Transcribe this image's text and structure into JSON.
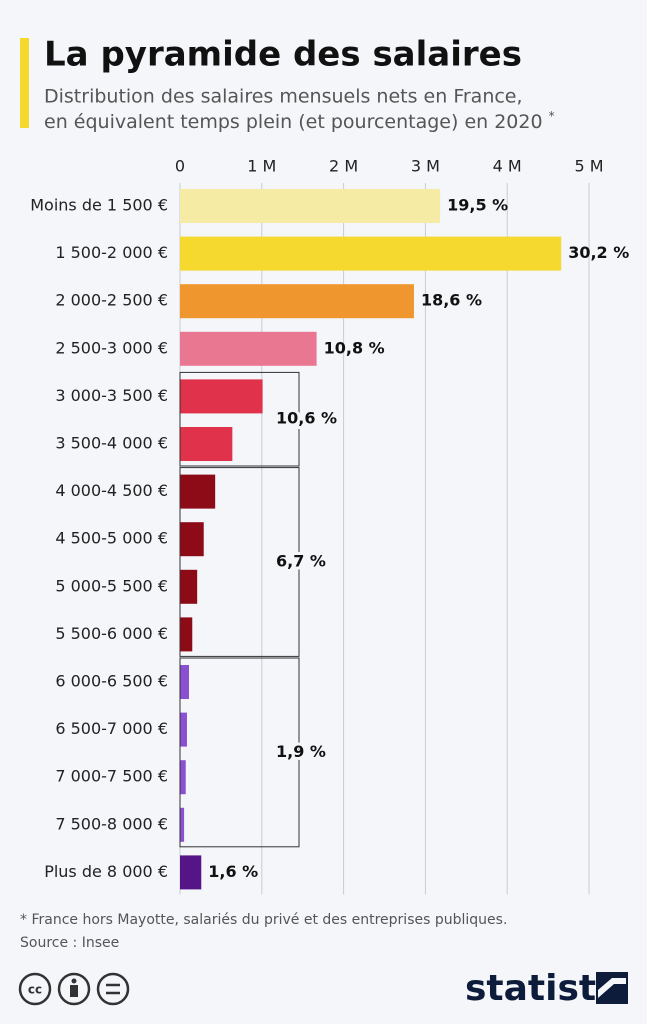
{
  "chart_data": {
    "type": "bar",
    "orientation": "horizontal",
    "title": "La pyramide des salaires",
    "subtitle": [
      "Distribution des salaires mensuels nets en France,",
      "en équivalent temps plein (et pourcentage) en 2020"
    ],
    "subtitle_mark": "*",
    "categories": [
      "Moins de 1 500 €",
      "1 500-2 000 €",
      "2 000-2 500 €",
      "2 500-3 000 €",
      "3 000-3 500 €",
      "3 500-4 000 €",
      "4 000-4 500 €",
      "4 500-5 000 €",
      "5 000-5 500 €",
      "5 500-6 000 €",
      "6 000-6 500 €",
      "6 500-7 000 €",
      "7 000-7 500 €",
      "7 500-8 000 €",
      "Plus de 8 000 €"
    ],
    "values": [
      3.18,
      4.66,
      2.86,
      1.67,
      1.01,
      0.64,
      0.43,
      0.29,
      0.21,
      0.15,
      0.11,
      0.085,
      0.07,
      0.05,
      0.26
    ],
    "colors": [
      "#f6eba4",
      "#f6d92e",
      "#f0962e",
      "#e97792",
      "#e0334b",
      "#e0334b",
      "#8c0b17",
      "#8c0b17",
      "#8c0b17",
      "#8c0b17",
      "#8b4fd1",
      "#8b4fd1",
      "#8b4fd1",
      "#8b4fd1",
      "#551586"
    ],
    "shares": [
      "19,5 %",
      "30,2 %",
      "18,6 %",
      "10,8 %",
      "10,6 %",
      "6,7 %",
      "1,9 %",
      "1,6 %"
    ],
    "xlim": [
      0,
      5
    ],
    "xticks": [
      0,
      {
        "value": 1,
        "label": "1 M"
      },
      {
        "value": 2,
        "label": "2 M"
      },
      {
        "value": 3,
        "label": "3 M"
      },
      {
        "value": 4,
        "label": "4 M"
      },
      {
        "value": 5,
        "label": "5 M"
      }
    ],
    "grid": true,
    "note": "* France hors Mayotte, salariés du privé et des entreprises publiques.",
    "source": "Source : Insee",
    "brand": "statista"
  }
}
